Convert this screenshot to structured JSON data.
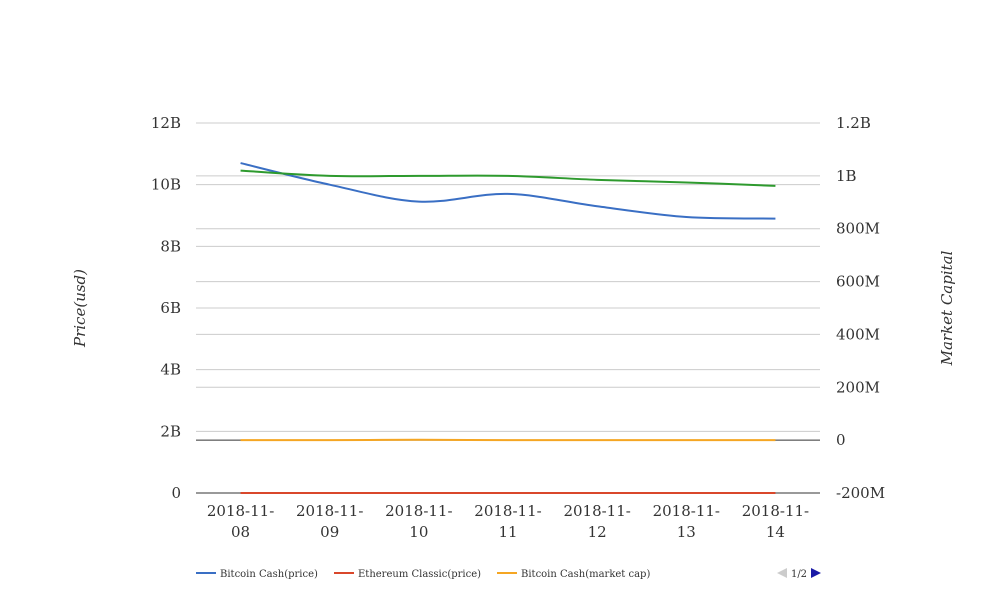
{
  "chart_data": {
    "type": "line",
    "categories": [
      "2018-11-08",
      "2018-11-09",
      "2018-11-10",
      "2018-11-11",
      "2018-11-12",
      "2018-11-13",
      "2018-11-14"
    ],
    "category_lines": [
      [
        "2018-11-",
        "08"
      ],
      [
        "2018-11-",
        "09"
      ],
      [
        "2018-11-",
        "10"
      ],
      [
        "2018-11-",
        "11"
      ],
      [
        "2018-11-",
        "12"
      ],
      [
        "2018-11-",
        "13"
      ],
      [
        "2018-11-",
        "14"
      ]
    ],
    "left_axis": {
      "label": "Price(usd)",
      "min": 0,
      "max": 12000000000,
      "ticks": [
        0,
        2000000000,
        4000000000,
        6000000000,
        8000000000,
        10000000000,
        12000000000
      ],
      "tick_labels": [
        "0",
        "2B",
        "4B",
        "6B",
        "8B",
        "10B",
        "12B"
      ]
    },
    "right_axis": {
      "label": "Market Capital",
      "min": -200000000,
      "max": 1200000000,
      "ticks": [
        -200000000,
        0,
        200000000,
        400000000,
        600000000,
        800000000,
        1000000000,
        1200000000
      ],
      "tick_labels": [
        "-200M",
        "0",
        "200M",
        "400M",
        "600M",
        "800M",
        "1B",
        "1.2B"
      ]
    },
    "series": [
      {
        "name": "Bitcoin Cash(price)",
        "axis": "left",
        "color": "#3a6fc4",
        "values": [
          10700000000,
          10000000000,
          9450000000,
          9700000000,
          9300000000,
          8950000000,
          8900000000
        ]
      },
      {
        "name": "Ethereum Classic(price)",
        "axis": "left",
        "color": "#d9472b",
        "values": [
          8,
          8,
          8,
          8,
          8,
          8,
          8
        ]
      },
      {
        "name": "Bitcoin Cash(market cap)",
        "axis": "right",
        "color": "#f5a623",
        "values": [
          0,
          0,
          1500000,
          0,
          0,
          0,
          0
        ]
      },
      {
        "name": "",
        "axis": "right",
        "color": "#2e9a2e",
        "values": [
          1020000000,
          1000000000,
          1000000000,
          1000000000,
          985000000,
          975000000,
          962000000
        ]
      }
    ],
    "legend_position": "bottom",
    "grid": true
  },
  "legend_pager": {
    "label": "1/2"
  }
}
